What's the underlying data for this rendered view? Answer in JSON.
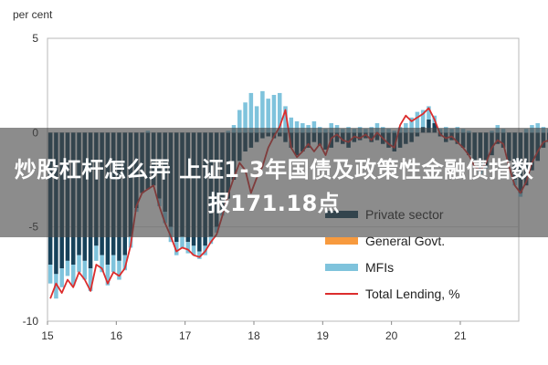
{
  "chart_data": {
    "type": "bar",
    "ylabel": "per cent",
    "ylim": [
      -10,
      5
    ],
    "yticks": [
      5,
      0,
      -5,
      -10
    ],
    "xtick_labels": [
      "15",
      "16",
      "17",
      "18",
      "19",
      "20",
      "21"
    ],
    "x_start": 2015.0,
    "x_end": 2021.85,
    "legend_position": "bottom-right",
    "grid": true,
    "months_start": "2015-01",
    "legend": [
      {
        "name": "Private sector",
        "kind": "bar",
        "color": "#17425a"
      },
      {
        "name": "General Govt.",
        "kind": "bar",
        "color": "#f79a3e"
      },
      {
        "name": "MFIs",
        "kind": "bar",
        "color": "#7fc3dc"
      },
      {
        "name": "Total Lending, %",
        "kind": "line",
        "color": "#dc2d2d"
      }
    ],
    "series": [
      {
        "name": "Private sector",
        "color": "#17425a",
        "values": [
          -7.0,
          -7.5,
          -7.2,
          -6.8,
          -7.0,
          -6.5,
          -6.8,
          -7.2,
          -6.0,
          -6.5,
          -7.0,
          -6.5,
          -6.8,
          -6.5,
          -5.5,
          -4.0,
          -3.2,
          -3.0,
          -2.8,
          -3.5,
          -4.2,
          -5.0,
          -5.8,
          -5.5,
          -5.8,
          -6.0,
          -6.3,
          -6.0,
          -5.5,
          -5.0,
          -4.2,
          -3.5,
          -2.5,
          -1.5,
          -1.0,
          -0.8,
          -0.5,
          -0.3,
          -0.2,
          -0.3,
          -0.2,
          -0.5,
          -0.8,
          -1.2,
          -1.0,
          -0.8,
          -0.5,
          -0.7,
          -0.9,
          -0.8,
          -0.5,
          -0.6,
          -0.8,
          -0.5,
          -0.4,
          -0.3,
          -0.5,
          -0.4,
          -0.6,
          -0.8,
          -1.0,
          -0.8,
          -0.6,
          -0.5,
          -0.2,
          0.3,
          0.7,
          0.5,
          -0.2,
          -0.5,
          -0.4,
          -0.6,
          -0.8,
          -1.2,
          -1.5,
          -2.0,
          -1.8,
          -1.2,
          -0.6,
          -0.8,
          -1.5,
          -2.5,
          -3.2,
          -2.8,
          -2.0,
          -1.5,
          -0.8,
          -0.5,
          -1.0,
          -2.0,
          -3.0,
          -3.6,
          -3.2,
          -2.5,
          -3.5,
          -3.8,
          -3.6,
          -3.0,
          -1.5,
          -0.5
        ]
      },
      {
        "name": "General Govt.",
        "color": "#f79a3e",
        "values": [
          0,
          0,
          0,
          0,
          0,
          0,
          0,
          0,
          0,
          0,
          0,
          0,
          0,
          0,
          0,
          0,
          0,
          0,
          0,
          0,
          0,
          0,
          0,
          0,
          0,
          0,
          0,
          0,
          0,
          0,
          0,
          0,
          0,
          0,
          0,
          0,
          0,
          0,
          0,
          0,
          0,
          0,
          0,
          0,
          0,
          0,
          0,
          0,
          0,
          0,
          0,
          0,
          0,
          0,
          0,
          0,
          0,
          0,
          0,
          0,
          0,
          0,
          0,
          0,
          0,
          0,
          0,
          0,
          0,
          0,
          0,
          0,
          0,
          0,
          0,
          0,
          0,
          0,
          0,
          0,
          0,
          0,
          0,
          0,
          0,
          0,
          0,
          0,
          0,
          0,
          0,
          0,
          0,
          0,
          0,
          0,
          0,
          0,
          0,
          0
        ]
      },
      {
        "name": "MFIs",
        "color": "#7fc3dc",
        "values": [
          -1.0,
          -1.3,
          -1.0,
          -0.8,
          -1.1,
          -0.9,
          -1.0,
          -1.2,
          -0.8,
          -0.9,
          -1.1,
          -0.9,
          -1.0,
          -0.8,
          -0.6,
          -0.2,
          0,
          0.1,
          0,
          -0.4,
          -0.6,
          -0.8,
          -0.7,
          -0.6,
          -0.6,
          -0.5,
          -0.4,
          -0.5,
          -0.4,
          -0.3,
          -0.2,
          0.1,
          0.4,
          1.2,
          1.6,
          2.1,
          1.4,
          2.2,
          1.8,
          2.0,
          2.1,
          1.4,
          0.8,
          0.6,
          0.5,
          0.4,
          0.6,
          0.3,
          0.2,
          0.5,
          0.4,
          0.2,
          0.3,
          0.2,
          0.3,
          0.2,
          0.3,
          0.5,
          0.3,
          0.2,
          0.1,
          0.3,
          0.5,
          0.8,
          1.1,
          0.9,
          0.7,
          0.4,
          0.2,
          0.3,
          0.2,
          0.3,
          0.2,
          0.1,
          0,
          -0.2,
          -0.1,
          0.1,
          0.4,
          0.2,
          0,
          -0.3,
          -0.2,
          0.2,
          0.4,
          0.5,
          0.3,
          0.2,
          0.4,
          0.2,
          0,
          -0.3,
          -0.2,
          0.1,
          -0.2,
          -0.5,
          -0.3,
          0,
          0.4,
          0.9
        ]
      },
      {
        "name": "Total Lending, %",
        "color": "#dc2d2d",
        "values": [
          -8.8,
          -8.0,
          -8.5,
          -7.8,
          -8.2,
          -7.4,
          -7.8,
          -8.4,
          -7.0,
          -7.2,
          -8.0,
          -7.4,
          -7.6,
          -7.2,
          -6.0,
          -3.9,
          -3.2,
          -3.0,
          -2.8,
          -3.9,
          -4.8,
          -5.5,
          -6.3,
          -6.1,
          -6.2,
          -6.5,
          -6.6,
          -6.3,
          -5.8,
          -5.4,
          -4.4,
          -3.3,
          -2.4,
          -1.6,
          -2.0,
          -3.2,
          -2.4,
          -1.8,
          -0.8,
          -0.2,
          0.3,
          1.2,
          -0.8,
          -1.3,
          -1.0,
          -0.6,
          -1.0,
          -0.6,
          -1.2,
          -0.3,
          -0.1,
          -0.4,
          -0.5,
          -0.2,
          -0.3,
          -0.1,
          -0.4,
          0.0,
          -0.3,
          -0.6,
          -0.8,
          0.4,
          0.9,
          0.6,
          0.8,
          1.0,
          1.3,
          0.7,
          -0.1,
          -0.3,
          -0.2,
          -0.5,
          -0.8,
          -1.2,
          -1.8,
          -2.0,
          -1.6,
          -0.8,
          -0.4,
          -0.6,
          -1.8,
          -2.8,
          -3.2,
          -2.6,
          -1.6,
          -1.0,
          -0.5,
          -0.4,
          -0.8,
          -2.0,
          -2.9,
          -3.4,
          -3.0,
          -2.6,
          -3.4,
          -4.0,
          -3.6,
          -2.8,
          -0.8,
          -0.3
        ]
      }
    ]
  },
  "banner": {
    "line1": "炒股杠杆怎么弄 上证1-3年国债及政策性金融债指数",
    "line2": "报171.18点"
  }
}
